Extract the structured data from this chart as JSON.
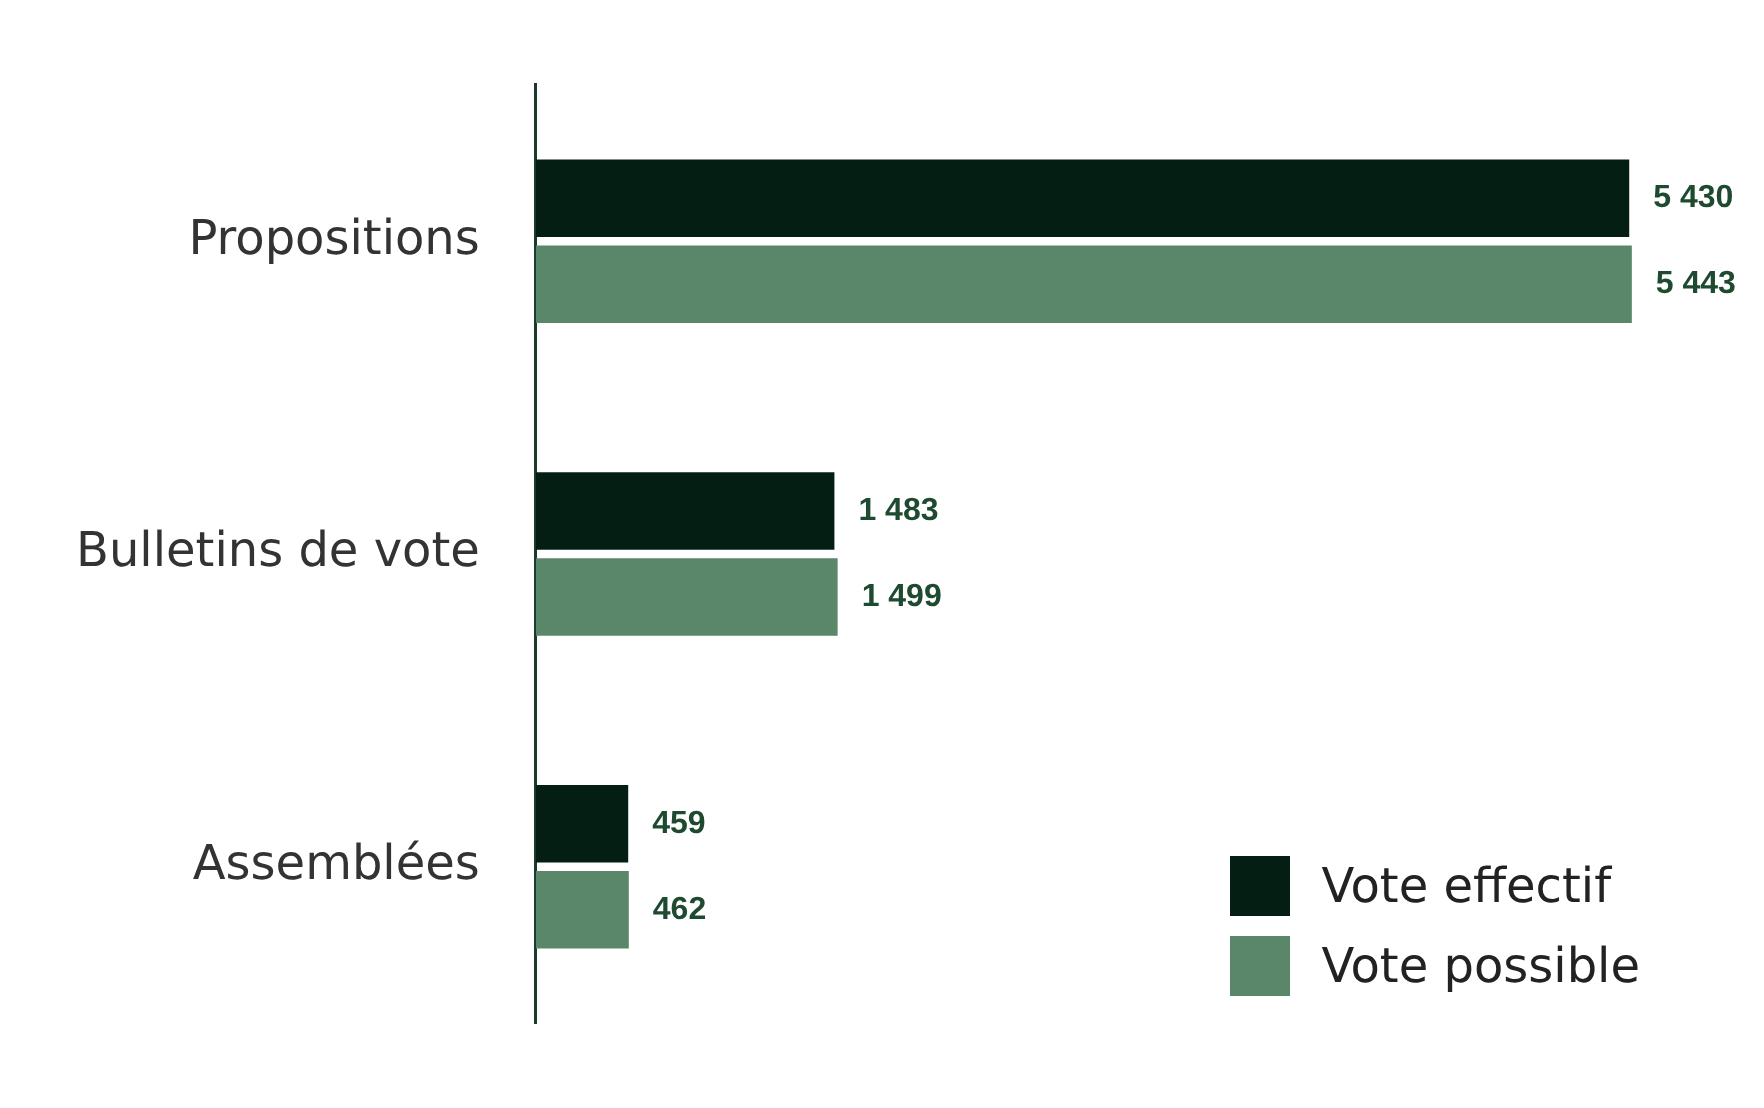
{
  "chart_data": {
    "type": "bar",
    "orientation": "horizontal",
    "categories": [
      "Propositions",
      "Bulletins de vote",
      "Assemblées"
    ],
    "series": [
      {
        "name": "Vote effectif",
        "color": "#051e14",
        "values": [
          5430,
          1483,
          459
        ],
        "value_labels": [
          "5 430",
          "1 483",
          "459"
        ]
      },
      {
        "name": "Vote possible",
        "color": "#5a8669",
        "values": [
          5443,
          1499,
          462
        ],
        "value_labels": [
          "5 443",
          "1 499",
          "462"
        ]
      }
    ],
    "legend": "bottom right",
    "tick_labels": "y"
  }
}
